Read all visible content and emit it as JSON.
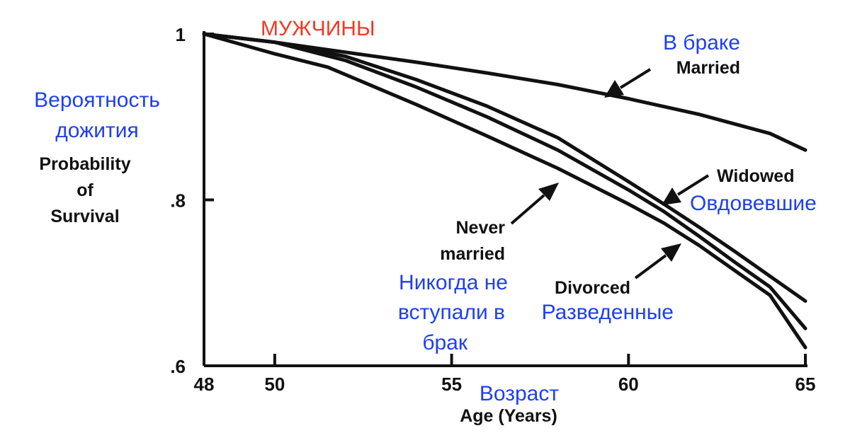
{
  "chart_data": {
    "type": "line",
    "title": "МУЖЧИНЫ",
    "xlabel": "Age (Years)",
    "xlabel_ru": "Возраст",
    "ylabel_lines": [
      "Probability",
      "of",
      "Survival"
    ],
    "ylabel_ru_lines": [
      "Вероятность",
      "дожития"
    ],
    "xlim": [
      48,
      65
    ],
    "ylim": [
      0.6,
      1.0
    ],
    "x_ticks": [
      48,
      50,
      55,
      60,
      65
    ],
    "x_tick_labels": [
      "48",
      "50",
      "55",
      "60",
      "65"
    ],
    "y_ticks": [
      0.6,
      0.8,
      1.0
    ],
    "y_tick_labels": [
      ".6",
      ".8",
      "1"
    ],
    "grid": false,
    "series": [
      {
        "name": "Married",
        "name_ru": "В браке",
        "x": [
          48,
          50,
          52,
          54,
          56,
          58,
          60,
          62,
          64,
          65
        ],
        "y": [
          1.0,
          0.99,
          0.978,
          0.966,
          0.953,
          0.939,
          0.922,
          0.903,
          0.88,
          0.86
        ]
      },
      {
        "name": "Widowed",
        "name_ru": "Овдовевшие",
        "x": [
          48,
          50,
          52,
          54,
          56,
          58,
          60,
          61,
          62,
          63,
          64,
          65
        ],
        "y": [
          1.0,
          0.99,
          0.973,
          0.945,
          0.913,
          0.875,
          0.822,
          0.795,
          0.767,
          0.738,
          0.708,
          0.678
        ]
      },
      {
        "name": "Divorced",
        "name_ru": "Разведенные",
        "x": [
          48,
          50,
          52,
          54,
          56,
          58,
          60,
          61,
          62,
          63,
          64,
          65
        ],
        "y": [
          1.0,
          0.99,
          0.968,
          0.936,
          0.9,
          0.86,
          0.812,
          0.786,
          0.756,
          0.725,
          0.695,
          0.645
        ]
      },
      {
        "name": "Never married",
        "name_ru": "Никогда не вступали в брак",
        "x": [
          48,
          50,
          51.5,
          54,
          56,
          58,
          60,
          61,
          62,
          63,
          64,
          65
        ],
        "y": [
          1.0,
          0.976,
          0.96,
          0.915,
          0.877,
          0.838,
          0.795,
          0.772,
          0.745,
          0.715,
          0.685,
          0.622
        ]
      }
    ],
    "annotations": {
      "married": {
        "en": [
          "Married"
        ],
        "ru": [
          "В браке"
        ]
      },
      "widowed": {
        "en": [
          "Widowed"
        ],
        "ru": [
          "Овдовевшие"
        ]
      },
      "divorced": {
        "en": [
          "Divorced"
        ],
        "ru": [
          "Разведенные"
        ]
      },
      "never_married": {
        "en": [
          "Never",
          "married"
        ],
        "ru": [
          "Никогда не",
          "вступали в",
          "брак"
        ]
      }
    }
  }
}
